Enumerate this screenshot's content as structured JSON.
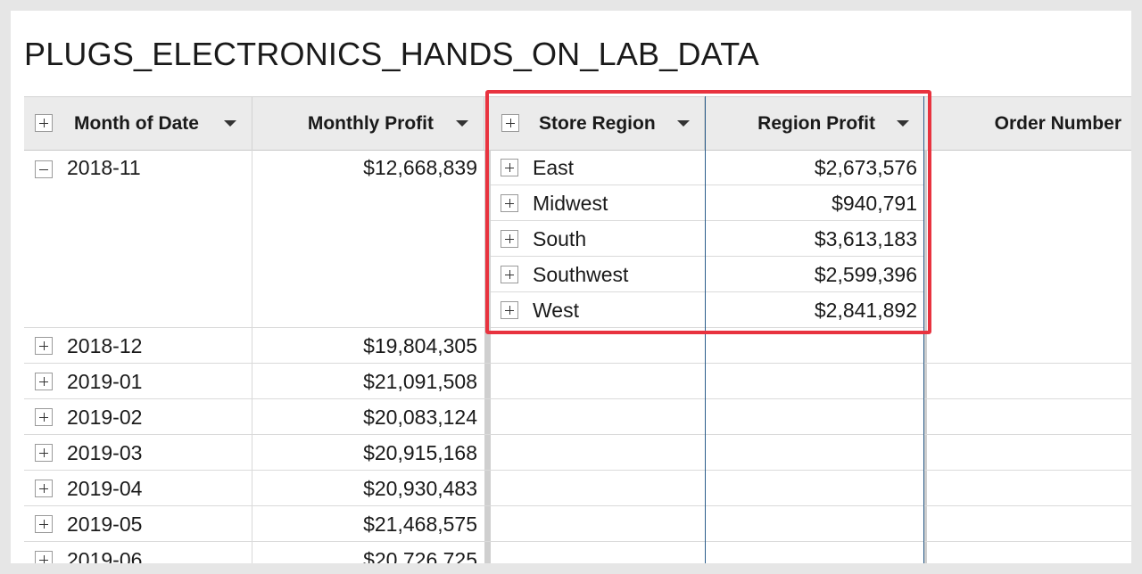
{
  "page_title": "PLUGS_ELECTRONICS_HANDS_ON_LAB_DATA",
  "columns": {
    "month": "Month of Date",
    "monthly_profit": "Monthly Profit",
    "store_region": "Store Region",
    "region_profit": "Region Profit",
    "order_number": "Order Number"
  },
  "expanded_month": {
    "month": "2018-11",
    "profit": "$12,668,839",
    "regions": [
      {
        "name": "East",
        "profit": "$2,673,576"
      },
      {
        "name": "Midwest",
        "profit": "$940,791"
      },
      {
        "name": "South",
        "profit": "$3,613,183"
      },
      {
        "name": "Southwest",
        "profit": "$2,599,396"
      },
      {
        "name": "West",
        "profit": "$2,841,892"
      }
    ]
  },
  "collapsed_months": [
    {
      "month": "2018-12",
      "profit": "$19,804,305"
    },
    {
      "month": "2019-01",
      "profit": "$21,091,508"
    },
    {
      "month": "2019-02",
      "profit": "$20,083,124"
    },
    {
      "month": "2019-03",
      "profit": "$20,915,168"
    },
    {
      "month": "2019-04",
      "profit": "$20,930,483"
    },
    {
      "month": "2019-05",
      "profit": "$21,468,575"
    },
    {
      "month": "2019-06",
      "profit": "$20,726,725"
    }
  ],
  "colors": {
    "highlight": "#e8333f",
    "selected_column": "#2b5d8a"
  }
}
